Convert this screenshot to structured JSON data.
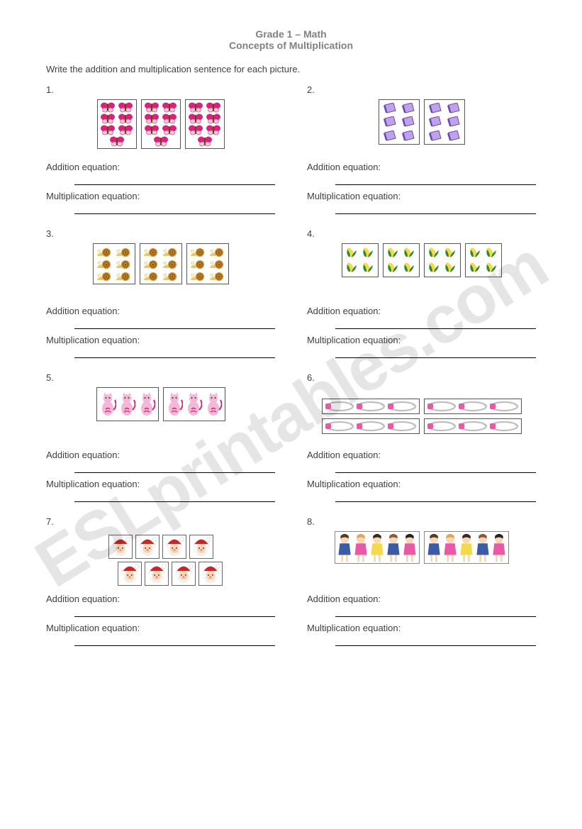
{
  "watermark_text": "ESLprintables.com",
  "header": {
    "line1": "Grade 1 – Math",
    "line2": "Concepts of Multiplication"
  },
  "instructions": "Write the addition and multiplication sentence for each picture.",
  "labels": {
    "addition": "Addition equation:",
    "multiplication": "Multiplication equation:"
  },
  "colors": {
    "text": "#404040",
    "header_text": "#808080",
    "watermark": "rgba(0,0,0,0.10)",
    "border": "#555555",
    "line": "#000000",
    "background": "#ffffff"
  },
  "problems": [
    {
      "number": "1.",
      "icon": "butterfly",
      "icon_colors": {
        "wing": "#d6247a",
        "accent": "#f6c6da",
        "body": "#6a3f1a"
      },
      "groups": 3,
      "per_group": 7,
      "group_cols": 2,
      "group_w": 56,
      "group_h": 70,
      "arrangement": "rows_of_2_last_centered"
    },
    {
      "number": "2.",
      "icon": "book",
      "icon_colors": {
        "fill": "#bfa2e8",
        "edge": "#6a47b6"
      },
      "groups": 2,
      "per_group": 6,
      "group_cols": 2,
      "group_w": 58,
      "group_h": 64
    },
    {
      "number": "3.",
      "icon": "snail",
      "icon_colors": {
        "shell": "#c98a2a",
        "body": "#e7c96f"
      },
      "groups": 3,
      "per_group": 6,
      "group_cols": 2,
      "group_w": 60,
      "group_h": 58
    },
    {
      "number": "4.",
      "icon": "corn",
      "icon_colors": {
        "husk": "#2f8a2f",
        "kernel": "#f3d94b"
      },
      "groups": 4,
      "per_group": 4,
      "group_cols": 2,
      "group_w": 52,
      "group_h": 48
    },
    {
      "number": "5.",
      "icon": "cat",
      "icon_colors": {
        "body": "#f5b7d6",
        "stripe": "#d6247a"
      },
      "groups": 2,
      "per_group": 3,
      "group_cols": 3,
      "group_w": 88,
      "group_h": 48
    },
    {
      "number": "6.",
      "icon": "pin",
      "icon_colors": {
        "metal": "#bfbfbf",
        "cap": "#e85aa6"
      },
      "groups": 4,
      "per_group": 3,
      "group_cols": 3,
      "group_w": 138,
      "group_h": 22,
      "arrangement": "two_rows"
    },
    {
      "number": "7.",
      "icon": "santa",
      "icon_colors": {
        "hat": "#c62828",
        "face": "#f8d7b4",
        "beard": "#ffffff"
      },
      "groups": 2,
      "per_group": 4,
      "group_cols": 4,
      "group_w": 0,
      "group_h": 0,
      "no_box": true,
      "arrangement": "two_rows_offset"
    },
    {
      "number": "8.",
      "icon": "kids",
      "icon_colors": {
        "a": "#3b5ba5",
        "b": "#e85aa6",
        "c": "#f3d94b",
        "d": "#8a5a3b"
      },
      "groups": 2,
      "per_group": 1,
      "group_cols": 1,
      "group_w": 0,
      "group_h": 0,
      "no_box": true
    }
  ]
}
